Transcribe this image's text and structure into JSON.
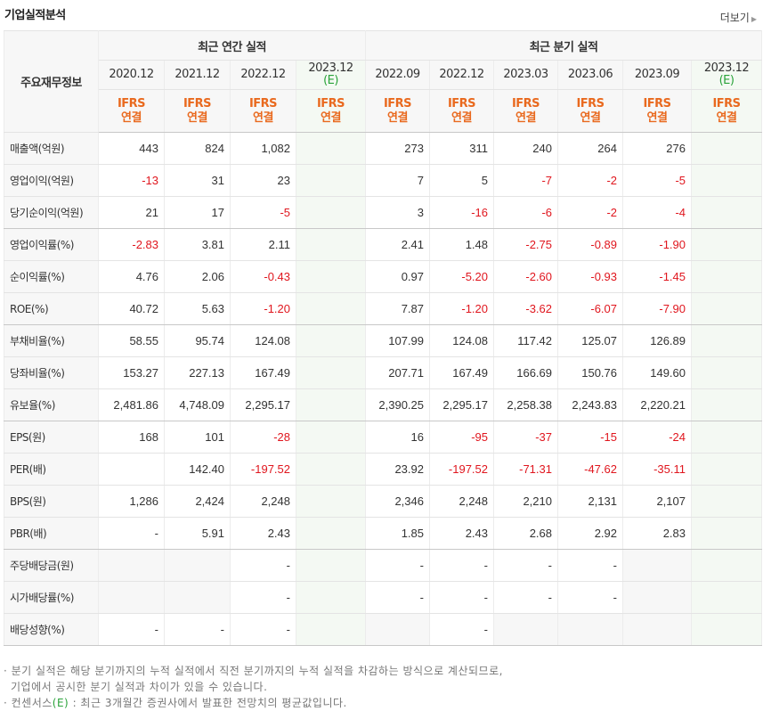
{
  "title": "기업실적분석",
  "more_label": "더보기",
  "header": {
    "label_col": "주요재무정보",
    "annual_group": "최근 연간 실적",
    "quarter_group": "최근 분기 실적",
    "annual_periods": [
      {
        "year": "2020.12",
        "est": ""
      },
      {
        "year": "2021.12",
        "est": ""
      },
      {
        "year": "2022.12",
        "est": ""
      },
      {
        "year": "2023.12",
        "est": "(E)"
      }
    ],
    "quarter_periods": [
      {
        "year": "2022.09",
        "est": ""
      },
      {
        "year": "2022.12",
        "est": ""
      },
      {
        "year": "2023.03",
        "est": ""
      },
      {
        "year": "2023.06",
        "est": ""
      },
      {
        "year": "2023.09",
        "est": ""
      },
      {
        "year": "2023.12",
        "est": "(E)"
      }
    ],
    "ifrs_line1": "IFRS",
    "ifrs_line2": "연결"
  },
  "rows": [
    {
      "label": "매출액(억원)",
      "values": [
        "443",
        "824",
        "1,082",
        "",
        "273",
        "311",
        "240",
        "264",
        "276",
        ""
      ]
    },
    {
      "label": "영업이익(억원)",
      "values": [
        "-13",
        "31",
        "23",
        "",
        "7",
        "5",
        "-7",
        "-2",
        "-5",
        ""
      ]
    },
    {
      "label": "당기순이익(억원)",
      "values": [
        "21",
        "17",
        "-5",
        "",
        "3",
        "-16",
        "-6",
        "-2",
        "-4",
        ""
      ]
    },
    {
      "label": "영업이익률(%)",
      "values": [
        "-2.83",
        "3.81",
        "2.11",
        "",
        "2.41",
        "1.48",
        "-2.75",
        "-0.89",
        "-1.90",
        ""
      ]
    },
    {
      "label": "순이익률(%)",
      "values": [
        "4.76",
        "2.06",
        "-0.43",
        "",
        "0.97",
        "-5.20",
        "-2.60",
        "-0.93",
        "-1.45",
        ""
      ]
    },
    {
      "label": "ROE(%)",
      "values": [
        "40.72",
        "5.63",
        "-1.20",
        "",
        "7.87",
        "-1.20",
        "-3.62",
        "-6.07",
        "-7.90",
        ""
      ]
    },
    {
      "label": "부채비율(%)",
      "values": [
        "58.55",
        "95.74",
        "124.08",
        "",
        "107.99",
        "124.08",
        "117.42",
        "125.07",
        "126.89",
        ""
      ]
    },
    {
      "label": "당좌비율(%)",
      "values": [
        "153.27",
        "227.13",
        "167.49",
        "",
        "207.71",
        "167.49",
        "166.69",
        "150.76",
        "149.60",
        ""
      ]
    },
    {
      "label": "유보율(%)",
      "values": [
        "2,481.86",
        "4,748.09",
        "2,295.17",
        "",
        "2,390.25",
        "2,295.17",
        "2,258.38",
        "2,243.83",
        "2,220.21",
        ""
      ]
    },
    {
      "label": "EPS(원)",
      "values": [
        "168",
        "101",
        "-28",
        "",
        "16",
        "-95",
        "-37",
        "-15",
        "-24",
        ""
      ]
    },
    {
      "label": "PER(배)",
      "values": [
        "",
        "142.40",
        "-197.52",
        "",
        "23.92",
        "-197.52",
        "-71.31",
        "-47.62",
        "-35.11",
        ""
      ]
    },
    {
      "label": "BPS(원)",
      "values": [
        "1,286",
        "2,424",
        "2,248",
        "",
        "2,346",
        "2,248",
        "2,210",
        "2,131",
        "2,107",
        ""
      ]
    },
    {
      "label": "PBR(배)",
      "values": [
        "-",
        "5.91",
        "2.43",
        "",
        "1.85",
        "2.43",
        "2.68",
        "2.92",
        "2.83",
        ""
      ]
    },
    {
      "label": "주당배당금(원)",
      "values": [
        "",
        "",
        "-",
        "",
        "-",
        "-",
        "-",
        "-",
        "",
        ""
      ]
    },
    {
      "label": "시가배당률(%)",
      "values": [
        "",
        "",
        "-",
        "",
        "-",
        "-",
        "-",
        "-",
        "",
        ""
      ]
    },
    {
      "label": "배당성향(%)",
      "values": [
        "-",
        "-",
        "-",
        "",
        "",
        "-",
        "",
        "",
        "",
        ""
      ]
    }
  ],
  "notes": [
    "· 분기 실적은 해당 분기까지의 누적 실적에서 직전 분기까지의 누적 실적을 차감하는 방식으로 계산되므로,",
    "기업에서 공시한 분기 실적과 차이가 있을 수 있습니다.",
    "· 컨센서스(E) : 최근 3개월간 증권사에서 발표한 전망치의 평균값입니다."
  ],
  "colors": {
    "negative": "#e0161e",
    "ifrs": "#e9691e",
    "estimate": "#2aa33a",
    "estimate_bg": "#f4f9f3"
  }
}
